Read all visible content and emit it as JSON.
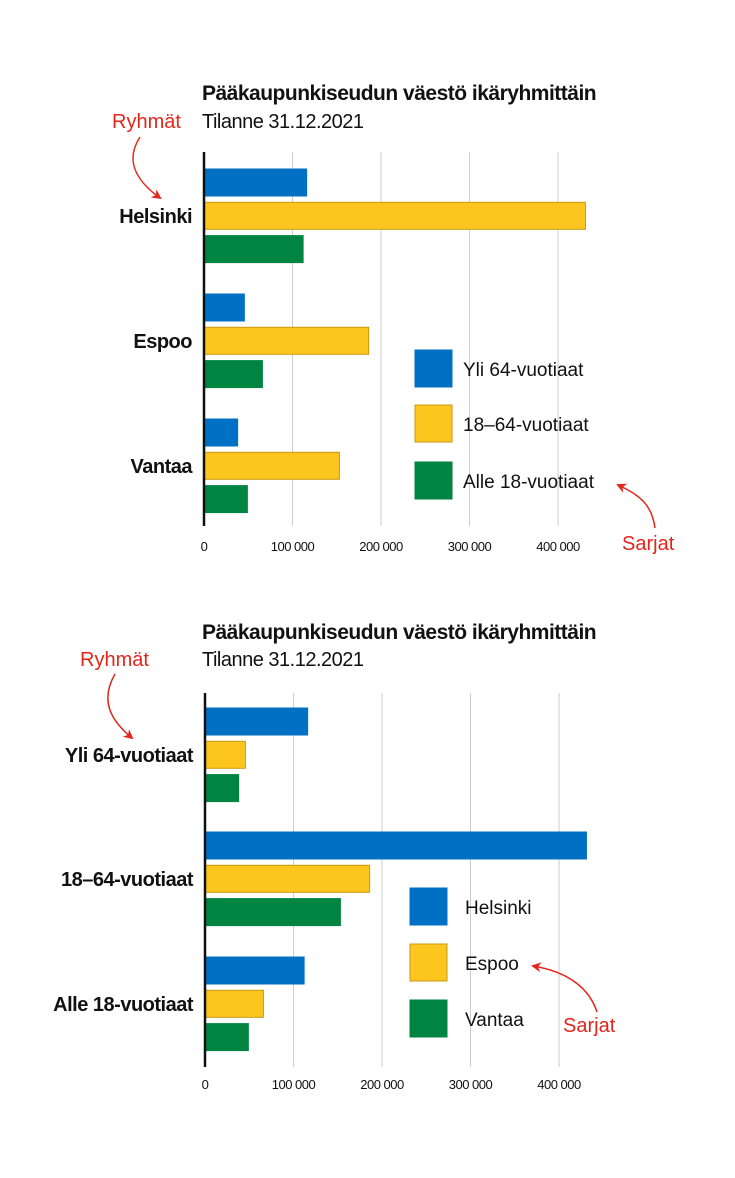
{
  "colors": {
    "blue": "#0070c4",
    "yellow": "#fdc61f",
    "yellow_border": "#c89a10",
    "green": "#008441",
    "annotation": "#e3261c",
    "grid": "#cccccc",
    "axis": "#111111"
  },
  "chart_data": [
    {
      "type": "bar",
      "orientation": "horizontal",
      "title": "Pääkaupunkiseudun väestö ikäryhmittäin",
      "subtitle": "Tilanne 31.12.2021",
      "categories": [
        "Helsinki",
        "Espoo",
        "Vantaa"
      ],
      "series": [
        {
          "name": "Yli 64-vuotiaat",
          "color": "#0070c4",
          "values": [
            116000,
            45600,
            38000
          ]
        },
        {
          "name": "18–64-vuotiaat",
          "color": "#fdc61f",
          "values": [
            431000,
            186000,
            153000
          ]
        },
        {
          "name": "Alle 18-vuotiaat",
          "color": "#008441",
          "values": [
            112000,
            66000,
            49000
          ]
        }
      ],
      "xlim": [
        0,
        450000
      ],
      "xticks": [
        0,
        100000,
        200000,
        300000,
        400000
      ],
      "xtick_labels": [
        "0",
        "100 000",
        "200 000",
        "300 000",
        "400 000"
      ],
      "grid": true,
      "legend_position": "bottom-right",
      "annotations": {
        "groups": "Ryhmät",
        "series": "Sarjat"
      }
    },
    {
      "type": "bar",
      "orientation": "horizontal",
      "title": "Pääkaupunkiseudun väestö ikäryhmittäin",
      "subtitle": "Tilanne 31.12.2021",
      "categories": [
        "Yli 64-vuotiaat",
        "18–64-vuotiaat",
        "Alle 18-vuotiaat"
      ],
      "series": [
        {
          "name": "Helsinki",
          "color": "#0070c4",
          "values": [
            116000,
            431000,
            112000
          ]
        },
        {
          "name": "Espoo",
          "color": "#fdc61f",
          "values": [
            45600,
            186000,
            66000
          ]
        },
        {
          "name": "Vantaa",
          "color": "#008441",
          "values": [
            38000,
            153000,
            49000
          ]
        }
      ],
      "xlim": [
        0,
        450000
      ],
      "xticks": [
        0,
        100000,
        200000,
        300000,
        400000
      ],
      "xtick_labels": [
        "0",
        "100 000",
        "200 000",
        "300 000",
        "400 000"
      ],
      "grid": true,
      "legend_position": "bottom-right",
      "annotations": {
        "groups": "Ryhmät",
        "series": "Sarjat"
      }
    }
  ]
}
